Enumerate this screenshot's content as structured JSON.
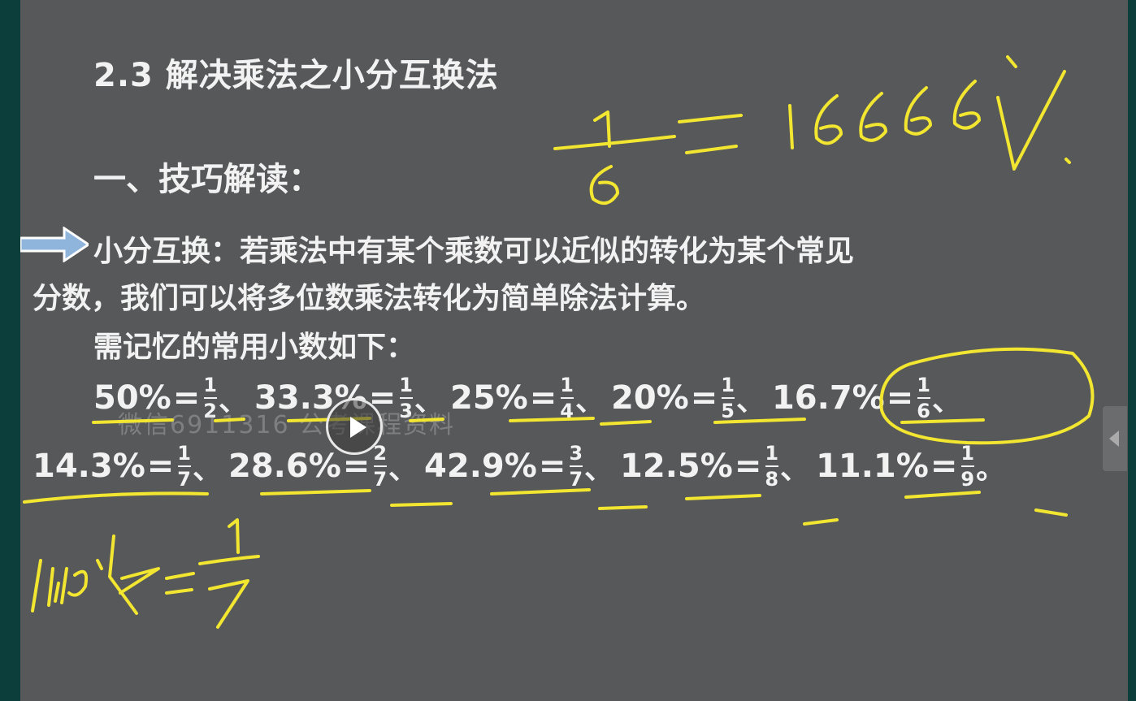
{
  "slide": {
    "title": "2.3  解决乘法之小分互换法",
    "heading": "一、技巧解读：",
    "para_line1": "小分互换：若乘法中有某个乘数可以近似的转化为某个常见",
    "para_line2": "分数，我们可以将多位数乘法转化为简单除法计算。",
    "para_line3": "需记忆的常用小数如下：",
    "row1": [
      {
        "pct": "50%",
        "eq": "=",
        "num": "1",
        "den": "2",
        "sep": "、"
      },
      {
        "pct": "33.3%",
        "eq": "=",
        "num": "1",
        "den": "3",
        "sep": "、"
      },
      {
        "pct": "25%",
        "eq": "=",
        "num": "1",
        "den": "4",
        "sep": "、"
      },
      {
        "pct": "20%",
        "eq": "=",
        "num": "1",
        "den": "5",
        "sep": "、"
      },
      {
        "pct": "16.7%",
        "eq": "=",
        "num": "1",
        "den": "6",
        "sep": "、"
      }
    ],
    "row2": [
      {
        "pct": "14.3%",
        "eq": "=",
        "num": "1",
        "den": "7",
        "sep": "、"
      },
      {
        "pct": "28.6%",
        "eq": "=",
        "num": "2",
        "den": "7",
        "sep": "、"
      },
      {
        "pct": "42.9%",
        "eq": "=",
        "num": "3",
        "den": "7",
        "sep": "、"
      },
      {
        "pct": "12.5%",
        "eq": "=",
        "num": "1",
        "den": "8",
        "sep": "、"
      },
      {
        "pct": "11.1%",
        "eq": "=",
        "num": "1",
        "den": "9",
        "sep": "。"
      }
    ],
    "watermark": "微信6911316    公考课程资料"
  },
  "handwriting": {
    "color": "#f2e631",
    "top_right": "1/6 = 16.666%",
    "bottom_left": "14.3% = 1/7"
  },
  "player": {
    "play_icon": "play-icon",
    "side_tab_icon": "chevron-left-icon"
  }
}
